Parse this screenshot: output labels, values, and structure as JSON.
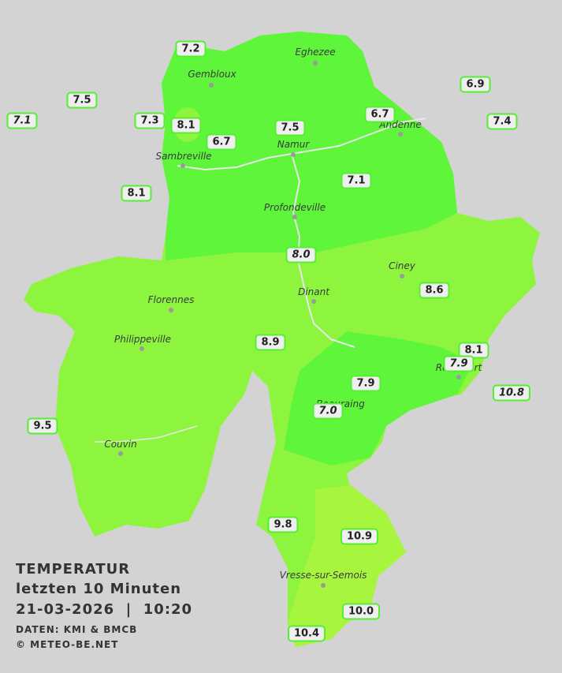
{
  "map": {
    "cities": [
      "Eghezee",
      "Gembloux",
      "Andenne",
      "Namur",
      "Sambreville",
      "Profondeville",
      "Ciney",
      "Dinant",
      "Florennes",
      "Philippeville",
      "Couvin",
      "Vresse-sur-Semois",
      "Rochefort",
      "Beauraing"
    ],
    "stations": [
      "7.2",
      "7.5",
      "7.1",
      "7.3",
      "8.1",
      "6.7",
      "7.5",
      "6.7",
      "6.9",
      "7.4",
      "8.1",
      "7.1",
      "8.0",
      "8.6",
      "8.9",
      "8.1",
      "7.9",
      "10.8",
      "7.9",
      "7.0",
      "9.5",
      "9.8",
      "10.9",
      "10.0",
      "10.4"
    ],
    "legend": {
      "title": "TEMPERATUR",
      "period": "letzten 10 Minuten",
      "datetime": "21-03-2026  |  10:20",
      "source": "DATEN: KMI & BMCB",
      "copyright": "© METEO-BE.NET"
    }
  }
}
